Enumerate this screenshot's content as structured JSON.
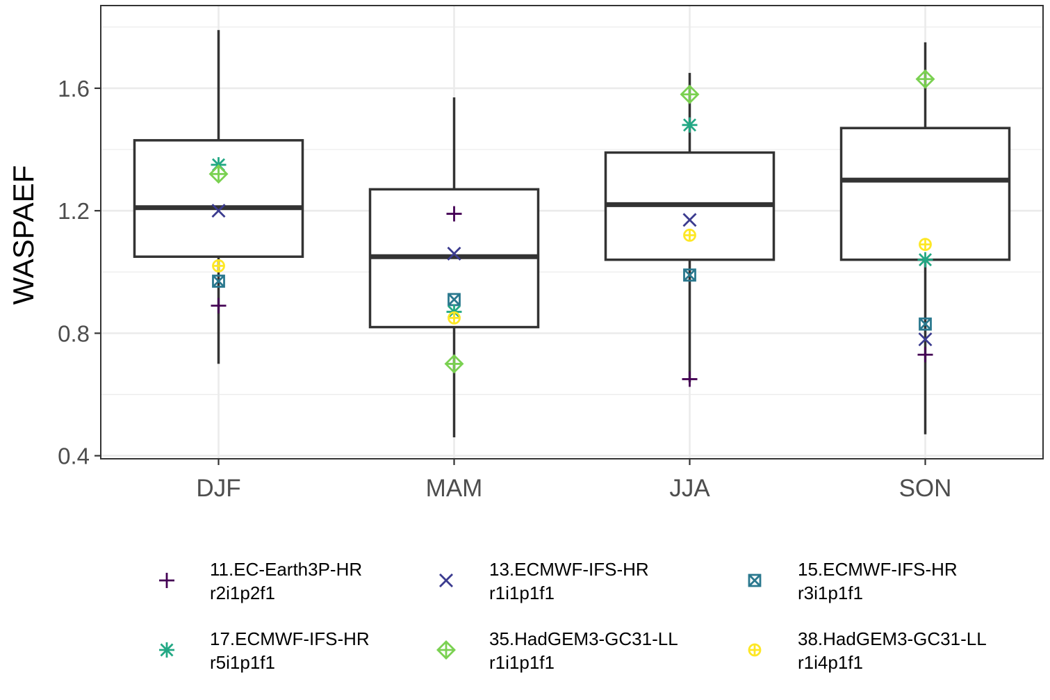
{
  "chart_data": {
    "type": "box",
    "title": "",
    "xlabel": "",
    "ylabel": "WASPAEF",
    "ylim": [
      0.39,
      1.87
    ],
    "yticks": [
      0.4,
      0.8,
      1.2,
      1.6
    ],
    "ytick_labels": [
      "0.4",
      "0.8",
      "1.2",
      "1.6"
    ],
    "categories": [
      "DJF",
      "MAM",
      "JJA",
      "SON"
    ],
    "boxes": [
      {
        "season": "DJF",
        "whisker_low": 0.7,
        "q1": 1.05,
        "median": 1.21,
        "q3": 1.43,
        "whisker_high": 1.79
      },
      {
        "season": "MAM",
        "whisker_low": 0.46,
        "q1": 0.82,
        "median": 1.05,
        "q3": 1.27,
        "whisker_high": 1.57
      },
      {
        "season": "JJA",
        "whisker_low": 0.64,
        "q1": 1.04,
        "median": 1.22,
        "q3": 1.39,
        "whisker_high": 1.65
      },
      {
        "season": "SON",
        "whisker_low": 0.47,
        "q1": 1.04,
        "median": 1.3,
        "q3": 1.47,
        "whisker_high": 1.75
      }
    ],
    "series": [
      {
        "name": "11.EC-Earth3P-HR",
        "member": "r2i1p2f1",
        "shape": "plus",
        "color": "#440154",
        "values": [
          0.89,
          1.19,
          0.65,
          0.73
        ]
      },
      {
        "name": "13.ECMWF-IFS-HR",
        "member": "r1i1p1f1",
        "shape": "cross",
        "color": "#3b3b8f",
        "values": [
          1.2,
          1.06,
          1.17,
          0.78
        ]
      },
      {
        "name": "15.ECMWF-IFS-HR",
        "member": "r3i1p1f1",
        "shape": "square-cross",
        "color": "#2a788e",
        "values": [
          0.97,
          0.91,
          0.99,
          0.83
        ]
      },
      {
        "name": "17.ECMWF-IFS-HR",
        "member": "r5i1p1f1",
        "shape": "asterisk",
        "color": "#22a884",
        "values": [
          1.35,
          0.87,
          1.48,
          1.04
        ]
      },
      {
        "name": "35.HadGEM3-GC31-LL",
        "member": "r1i1p1f1",
        "shape": "diamond-plus",
        "color": "#7ad151",
        "values": [
          1.32,
          0.7,
          1.58,
          1.63
        ]
      },
      {
        "name": "38.HadGEM3-GC31-LL",
        "member": "r1i4p1f1",
        "shape": "circle-plus",
        "color": "#fde725",
        "values": [
          1.02,
          0.85,
          1.12,
          1.09
        ]
      }
    ],
    "grid": true,
    "legend": "bottom"
  }
}
